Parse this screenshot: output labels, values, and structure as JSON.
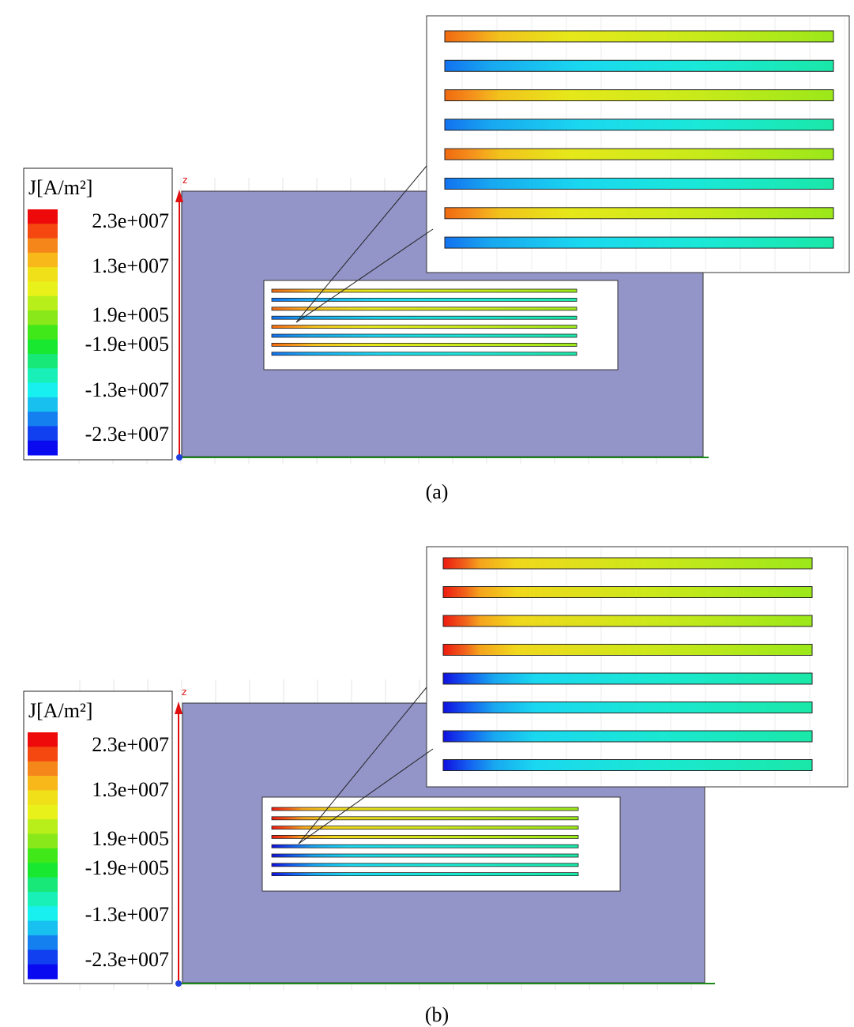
{
  "panels": [
    {
      "legend": {
        "title": "J[A/m²]",
        "labels": [
          "2.3e+007",
          "1.3e+007",
          "1.9e+005",
          "-1.9e+005",
          "-1.3e+007",
          "-2.3e+007"
        ]
      },
      "axis_label": "z",
      "caption": "(a)"
    },
    {
      "legend": {
        "title": "J[A/m²]",
        "labels": [
          "2.3e+007",
          "1.3e+007",
          "1.9e+005",
          "-1.9e+005",
          "-1.3e+007",
          "-2.3e+007"
        ]
      },
      "axis_label": "z",
      "caption": "(b)"
    }
  ]
}
